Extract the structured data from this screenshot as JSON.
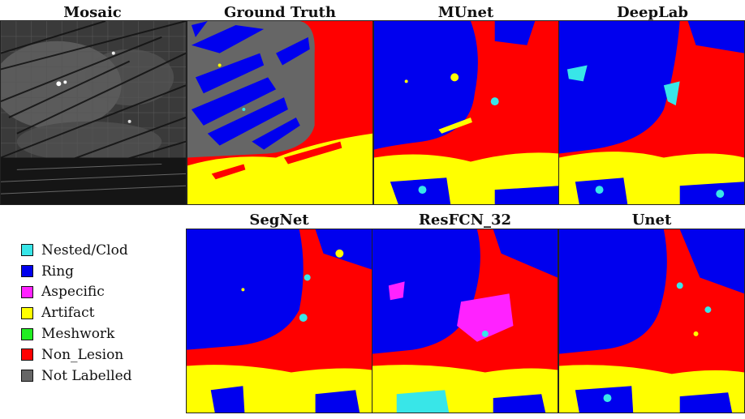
{
  "panels": {
    "mosaic": "Mosaic",
    "ground_truth": "Ground Truth",
    "munet": "MUnet",
    "deeplab": "DeepLab",
    "segnet": "SegNet",
    "resfcn": "ResFCN_32",
    "unet": "Unet"
  },
  "legend": [
    {
      "label": "Nested/Clod",
      "color": "#38e6e8"
    },
    {
      "label": "Ring",
      "color": "#0000ee"
    },
    {
      "label": "Aspecific",
      "color": "#ff22ff"
    },
    {
      "label": "Artifact",
      "color": "#ffff00"
    },
    {
      "label": "Meshwork",
      "color": "#22ee22"
    },
    {
      "label": "Non_Lesion",
      "color": "#ff0000"
    },
    {
      "label": "Not Labelled",
      "color": "#666666"
    }
  ]
}
